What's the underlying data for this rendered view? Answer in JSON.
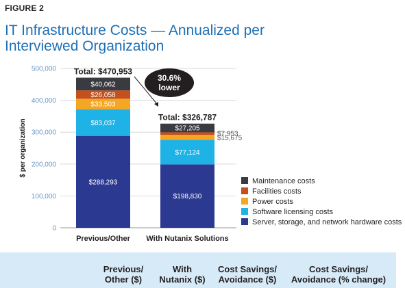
{
  "figure_label": "FIGURE 2",
  "title": "IT Infrastructure Costs — Annualized per Interviewed Organization",
  "chart_data": {
    "type": "bar",
    "stacked": true,
    "title": "IT Infrastructure Costs — Annualized per Interviewed Organization",
    "ylabel": "$ per organization",
    "xlabel": "",
    "ylim": [
      0,
      500000
    ],
    "yticks": [
      0,
      100000,
      200000,
      300000,
      400000,
      500000
    ],
    "ytick_labels": [
      "0",
      "100,000",
      "200,000",
      "300,000",
      "400,000",
      "500,000"
    ],
    "grid": true,
    "legend_position": "right",
    "categories": [
      "Previous/Other",
      "With Nutanix Solutions"
    ],
    "series": [
      {
        "name": "Server, storage, and network hardware costs",
        "color": "#2b3990",
        "values": [
          288293,
          198830
        ],
        "labels": [
          "$288,293",
          "$198,830"
        ]
      },
      {
        "name": "Software licensing costs",
        "color": "#1fb2e6",
        "values": [
          83037,
          77124
        ],
        "labels": [
          "$83,037",
          "$77,124"
        ]
      },
      {
        "name": "Power costs",
        "color": "#f5a623",
        "values": [
          33503,
          15675
        ],
        "labels": [
          "$33,503",
          "$15,675"
        ]
      },
      {
        "name": "Facilities costs",
        "color": "#c4501c",
        "values": [
          26058,
          7953
        ],
        "labels": [
          "$26,058",
          "$7,953"
        ]
      },
      {
        "name": "Maintenance costs",
        "color": "#3a3b40",
        "values": [
          40062,
          27205
        ],
        "labels": [
          "$40,062",
          "$27,205"
        ]
      }
    ],
    "totals": [
      "Total: $470,953",
      "Total: $326,787"
    ],
    "annotation": {
      "line1": "30.6%",
      "line2": "lower"
    }
  },
  "table_header": {
    "columns": [
      {
        "line1": "Previous/",
        "line2": "Other ($)"
      },
      {
        "line1": "With",
        "line2": "Nutanix ($)"
      },
      {
        "line1": "Cost Savings/",
        "line2": "Avoidance ($)"
      },
      {
        "line1": "Cost Savings/",
        "line2": "Avoidance (% change)"
      }
    ]
  }
}
